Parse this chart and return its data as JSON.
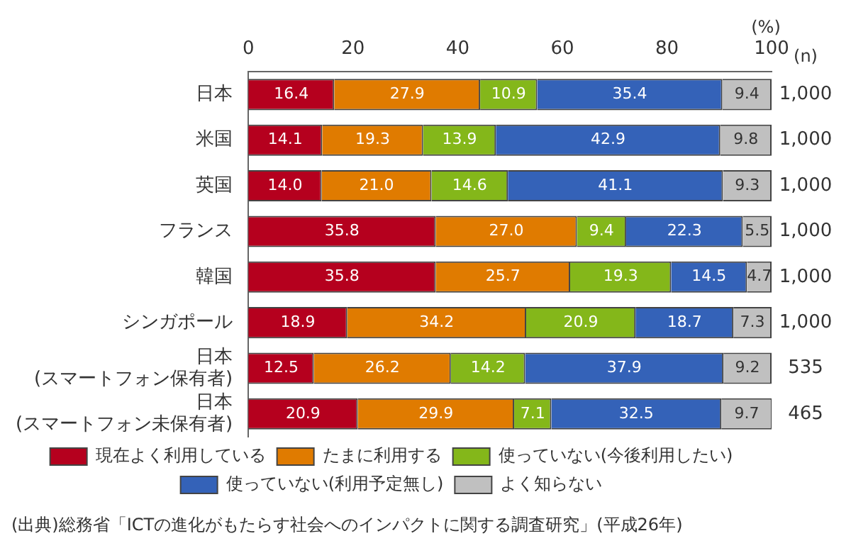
{
  "chart_data": {
    "type": "bar",
    "orientation": "horizontal",
    "stacked": true,
    "categories": [
      "日本",
      "米国",
      "英国",
      "フランス",
      "韓国",
      "シンガポール",
      "日本\n(スマートフォン保有者)",
      "日本\n(スマートフォン未保有者)"
    ],
    "series": [
      {
        "name": "現在よく利用している",
        "color": "#b5001e",
        "values": [
          16.4,
          14.1,
          14.0,
          35.8,
          35.8,
          18.9,
          12.5,
          20.9
        ],
        "value_labels": [
          "16.4",
          "14.1",
          "14.0",
          "35.8",
          "35.8",
          "18.9",
          "12.5",
          "20.9"
        ]
      },
      {
        "name": "たまに利用する",
        "color": "#e07b00",
        "values": [
          27.9,
          19.3,
          21.0,
          27.0,
          25.7,
          34.2,
          26.2,
          29.9
        ],
        "value_labels": [
          "27.9",
          "19.3",
          "21.0",
          "27.0",
          "25.7",
          "34.2",
          "26.2",
          "29.9"
        ]
      },
      {
        "name": "使っていない(今後利用したい)",
        "color": "#84b71a",
        "values": [
          10.9,
          13.9,
          14.6,
          9.4,
          19.3,
          20.9,
          14.2,
          7.1
        ],
        "value_labels": [
          "10.9",
          "13.9",
          "14.6",
          "9.4",
          "19.3",
          "20.9",
          "14.2",
          "7.1"
        ]
      },
      {
        "name": "使っていない(利用予定無し)",
        "color": "#3462b8",
        "values": [
          35.4,
          42.9,
          41.1,
          22.3,
          14.5,
          18.7,
          37.9,
          32.5
        ],
        "value_labels": [
          "35.4",
          "42.9",
          "41.1",
          "22.3",
          "14.5",
          "18.7",
          "37.9",
          "32.5"
        ]
      },
      {
        "name": "よく知らない",
        "color": "#c0c0c0",
        "values": [
          9.4,
          9.8,
          9.3,
          5.5,
          4.7,
          7.3,
          9.2,
          9.7
        ],
        "value_labels": [
          "9.4",
          "9.8",
          "9.3",
          "5.5",
          "4.7",
          "7.3",
          "9.2",
          "9.7"
        ]
      }
    ],
    "xlim": [
      0,
      100
    ],
    "xticks": [
      0,
      20,
      40,
      60,
      80,
      100
    ],
    "xlabel": "(%)",
    "y2label": "(n)",
    "y2_categories": [
      "1,000",
      "1,000",
      "1,000",
      "1,000",
      "1,000",
      "1,000",
      "535",
      "465"
    ],
    "legend": "bottom",
    "grid": false,
    "annotations": [
      "(出典)総務省「ICTの進化がもたらす社会へのインパクトに関する調査研究」(平成26年)"
    ]
  }
}
